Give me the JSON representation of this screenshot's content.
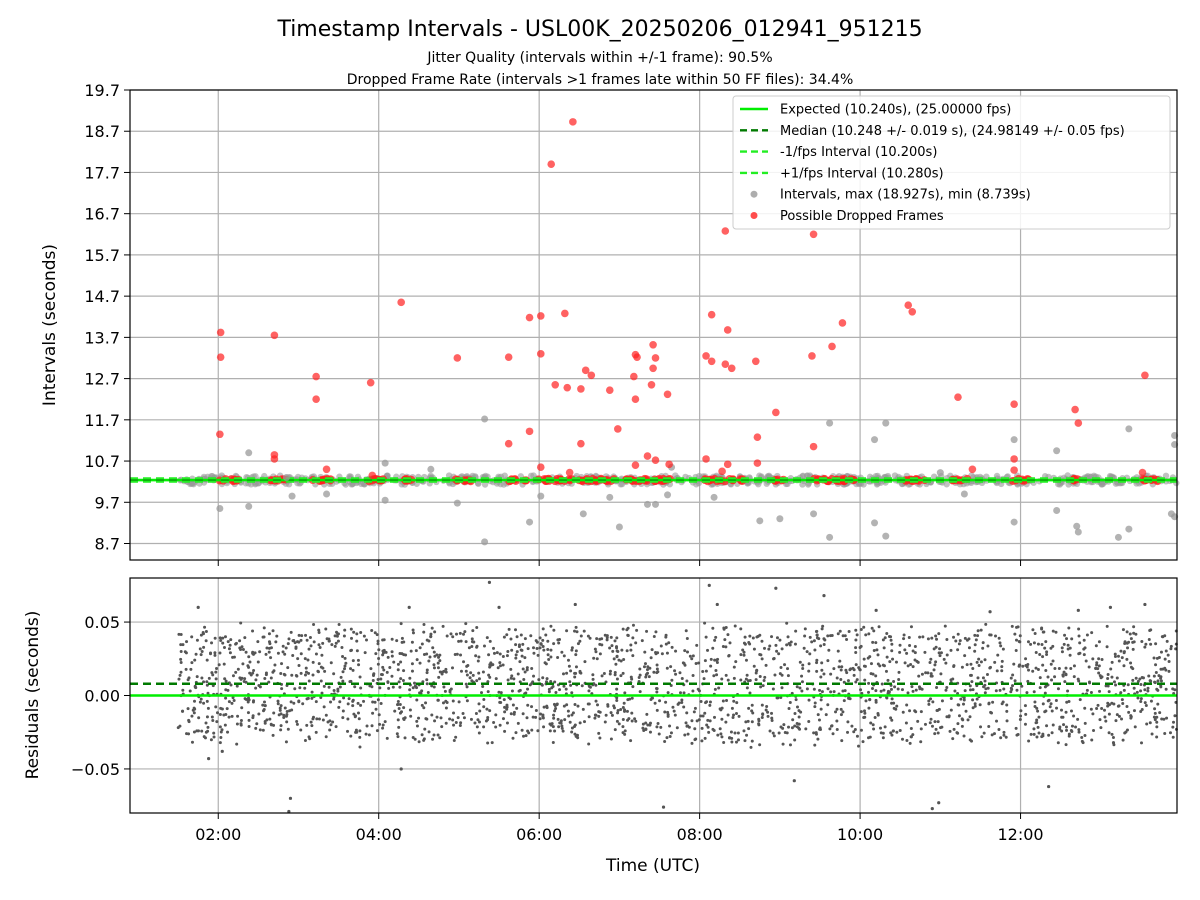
{
  "chart_data": [
    {
      "type": "scatter",
      "title": "Timestamp Intervals - USL00K_20250206_012941_951215",
      "subtitle_lines": [
        "Jitter Quality (intervals within +/-1 frame): 90.5%",
        "Dropped Frame Rate (intervals >1 frames late within 50 FF files): 34.4%"
      ],
      "ylabel": "Intervals (seconds)",
      "xlabel": "",
      "xlim": [
        0.9,
        13.95
      ],
      "ylim": [
        8.3,
        19.7
      ],
      "yticks": [
        8.7,
        9.7,
        10.7,
        11.7,
        12.7,
        13.7,
        14.7,
        15.7,
        16.7,
        17.7,
        18.7,
        19.7
      ],
      "ytick_labels": [
        "8.7",
        "9.7",
        "10.7",
        "11.7",
        "12.7",
        "13.7",
        "14.7",
        "15.7",
        "16.7",
        "17.7",
        "18.7",
        "19.7"
      ],
      "xticks": [
        2,
        4,
        6,
        8,
        10,
        12
      ],
      "grid": true,
      "legend_position": "top-right",
      "reference_lines": [
        {
          "name": "Expected (10.240s), (25.00000 fps)",
          "y": 10.24,
          "color": "#00ee00",
          "style": "solid"
        },
        {
          "name": "Median (10.248 +/- 0.019 s), (24.98149 +/- 0.05 fps)",
          "y": 10.248,
          "color": "#007a00",
          "style": "dashed"
        },
        {
          "name": "-1/fps Interval (10.200s)",
          "y": 10.2,
          "color": "#22ee22",
          "style": "dashed"
        },
        {
          "name": "+1/fps Interval (10.280s)",
          "y": 10.28,
          "color": "#22ee22",
          "style": "dashed"
        }
      ],
      "series": [
        {
          "name": "Intervals, max (18.927s), min (8.739s)",
          "color": "#999999",
          "baseline": 10.24,
          "baseline_x_range": [
            1.5,
            13.95
          ],
          "outliers": [
            [
              2.02,
              9.55
            ],
            [
              2.38,
              9.6
            ],
            [
              2.38,
              10.9
            ],
            [
              2.85,
              10.3
            ],
            [
              2.92,
              9.85
            ],
            [
              3.35,
              9.9
            ],
            [
              4.08,
              10.65
            ],
            [
              4.08,
              9.75
            ],
            [
              4.65,
              10.5
            ],
            [
              4.98,
              9.68
            ],
            [
              5.32,
              11.72
            ],
            [
              5.32,
              8.739
            ],
            [
              5.88,
              9.22
            ],
            [
              6.02,
              9.85
            ],
            [
              6.55,
              9.42
            ],
            [
              6.88,
              9.82
            ],
            [
              7.0,
              9.1
            ],
            [
              7.35,
              9.65
            ],
            [
              7.45,
              9.65
            ],
            [
              7.6,
              9.88
            ],
            [
              7.65,
              10.55
            ],
            [
              8.18,
              9.82
            ],
            [
              8.75,
              9.25
            ],
            [
              9.0,
              9.3
            ],
            [
              9.42,
              9.42
            ],
            [
              9.62,
              11.62
            ],
            [
              9.62,
              8.85
            ],
            [
              10.18,
              11.22
            ],
            [
              10.18,
              9.2
            ],
            [
              10.32,
              11.62
            ],
            [
              10.32,
              8.88
            ],
            [
              11.0,
              10.42
            ],
            [
              11.3,
              9.9
            ],
            [
              11.92,
              9.22
            ],
            [
              11.92,
              11.22
            ],
            [
              12.45,
              10.95
            ],
            [
              12.45,
              9.5
            ],
            [
              12.7,
              9.12
            ],
            [
              12.72,
              8.98
            ],
            [
              13.22,
              8.85
            ],
            [
              13.35,
              9.05
            ],
            [
              13.35,
              11.48
            ],
            [
              13.88,
              9.42
            ],
            [
              13.92,
              11.32
            ],
            [
              13.92,
              11.1
            ],
            [
              13.92,
              9.35
            ]
          ]
        },
        {
          "name": "Possible Dropped Frames",
          "color": "#ff2020",
          "baseline": 10.24,
          "baseline_clusters": [
            [
              2.0,
              2.25
            ],
            [
              2.65,
              2.85
            ],
            [
              3.15,
              3.4
            ],
            [
              3.88,
              4.1
            ],
            [
              4.28,
              4.45
            ],
            [
              4.92,
              5.15
            ],
            [
              5.6,
              5.85
            ],
            [
              5.95,
              6.95
            ],
            [
              7.05,
              7.65
            ],
            [
              8.05,
              8.55
            ],
            [
              8.9,
              9.05
            ],
            [
              9.4,
              9.95
            ],
            [
              10.55,
              10.85
            ],
            [
              11.15,
              11.35
            ],
            [
              11.9,
              12.1
            ],
            [
              12.6,
              12.72
            ],
            [
              13.5,
              13.75
            ]
          ],
          "outliers": [
            [
              2.03,
              13.82
            ],
            [
              2.03,
              13.22
            ],
            [
              2.02,
              11.35
            ],
            [
              2.7,
              13.75
            ],
            [
              2.7,
              10.85
            ],
            [
              2.7,
              10.75
            ],
            [
              3.22,
              12.75
            ],
            [
              3.22,
              12.2
            ],
            [
              3.35,
              10.5
            ],
            [
              3.9,
              12.6
            ],
            [
              3.92,
              10.35
            ],
            [
              4.28,
              14.55
            ],
            [
              4.98,
              13.2
            ],
            [
              5.62,
              13.22
            ],
            [
              5.62,
              11.12
            ],
            [
              5.88,
              14.18
            ],
            [
              5.88,
              11.42
            ],
            [
              6.02,
              14.22
            ],
            [
              6.02,
              13.3
            ],
            [
              6.02,
              10.55
            ],
            [
              6.15,
              17.9
            ],
            [
              6.2,
              12.55
            ],
            [
              6.32,
              14.28
            ],
            [
              6.35,
              12.48
            ],
            [
              6.38,
              10.42
            ],
            [
              6.42,
              18.927
            ],
            [
              6.52,
              12.45
            ],
            [
              6.52,
              11.12
            ],
            [
              6.58,
              12.9
            ],
            [
              6.65,
              12.78
            ],
            [
              6.88,
              12.42
            ],
            [
              6.98,
              11.48
            ],
            [
              7.18,
              12.75
            ],
            [
              7.2,
              13.28
            ],
            [
              7.2,
              12.2
            ],
            [
              7.22,
              13.22
            ],
            [
              7.2,
              10.6
            ],
            [
              7.35,
              10.82
            ],
            [
              7.4,
              12.55
            ],
            [
              7.42,
              13.52
            ],
            [
              7.42,
              12.95
            ],
            [
              7.45,
              13.2
            ],
            [
              7.45,
              10.72
            ],
            [
              7.6,
              12.32
            ],
            [
              7.62,
              10.62
            ],
            [
              8.08,
              13.25
            ],
            [
              8.08,
              10.75
            ],
            [
              8.15,
              14.25
            ],
            [
              8.15,
              13.12
            ],
            [
              8.28,
              10.45
            ],
            [
              8.32,
              16.28
            ],
            [
              8.32,
              13.05
            ],
            [
              8.35,
              13.88
            ],
            [
              8.35,
              10.62
            ],
            [
              8.4,
              12.95
            ],
            [
              8.7,
              13.12
            ],
            [
              8.72,
              11.28
            ],
            [
              8.72,
              10.65
            ],
            [
              8.95,
              11.88
            ],
            [
              9.4,
              13.25
            ],
            [
              9.42,
              16.2
            ],
            [
              9.42,
              11.05
            ],
            [
              9.65,
              13.48
            ],
            [
              9.78,
              14.05
            ],
            [
              10.6,
              14.48
            ],
            [
              10.65,
              14.32
            ],
            [
              11.22,
              12.25
            ],
            [
              11.4,
              10.5
            ],
            [
              11.92,
              12.08
            ],
            [
              11.92,
              10.75
            ],
            [
              11.92,
              10.48
            ],
            [
              12.68,
              11.95
            ],
            [
              12.72,
              11.62
            ],
            [
              13.52,
              10.42
            ],
            [
              13.55,
              12.78
            ]
          ]
        }
      ],
      "legend": [
        "Expected (10.240s), (25.00000 fps)",
        "Median (10.248 +/- 0.019 s), (24.98149 +/- 0.05 fps)",
        "-1/fps Interval (10.200s)",
        "+1/fps Interval (10.280s)",
        "Intervals, max (18.927s), min (8.739s)",
        "Possible Dropped Frames"
      ]
    },
    {
      "type": "scatter",
      "title": "",
      "ylabel": "Residuals (seconds)",
      "xlabel": "Time (UTC)",
      "xlim": [
        0.9,
        13.95
      ],
      "ylim": [
        -0.08,
        0.08
      ],
      "yticks": [
        -0.05,
        0.0,
        0.05
      ],
      "ytick_labels": [
        "−0.05",
        "0.00",
        "0.05"
      ],
      "xticks": [
        2,
        4,
        6,
        8,
        10,
        12
      ],
      "xtick_labels": [
        "02:00",
        "04:00",
        "06:00",
        "08:00",
        "10:00",
        "12:00"
      ],
      "grid": true,
      "reference_lines": [
        {
          "y": 0.0,
          "color": "#00ee00",
          "style": "solid"
        },
        {
          "y": 0.008,
          "color": "#007a00",
          "style": "dashed"
        }
      ],
      "series": [
        {
          "color": "#555555",
          "x_range": [
            1.5,
            13.95
          ],
          "bulk_y_range": [
            -0.03,
            0.045
          ],
          "outliers": [
            [
              1.75,
              0.06
            ],
            [
              1.88,
              -0.043
            ],
            [
              2.05,
              -0.038
            ],
            [
              2.9,
              -0.07
            ],
            [
              2.88,
              -0.079
            ],
            [
              4.28,
              -0.05
            ],
            [
              4.38,
              0.06
            ],
            [
              5.38,
              0.077
            ],
            [
              5.5,
              0.06
            ],
            [
              6.45,
              0.062
            ],
            [
              7.55,
              -0.076
            ],
            [
              8.12,
              0.075
            ],
            [
              8.22,
              0.062
            ],
            [
              8.95,
              0.073
            ],
            [
              9.55,
              0.068
            ],
            [
              9.18,
              -0.058
            ],
            [
              10.2,
              0.058
            ],
            [
              10.98,
              -0.073
            ],
            [
              10.9,
              -0.077
            ],
            [
              11.62,
              0.057
            ],
            [
              12.35,
              -0.062
            ],
            [
              12.72,
              0.058
            ],
            [
              13.12,
              0.06
            ],
            [
              13.55,
              0.062
            ]
          ]
        }
      ]
    }
  ]
}
